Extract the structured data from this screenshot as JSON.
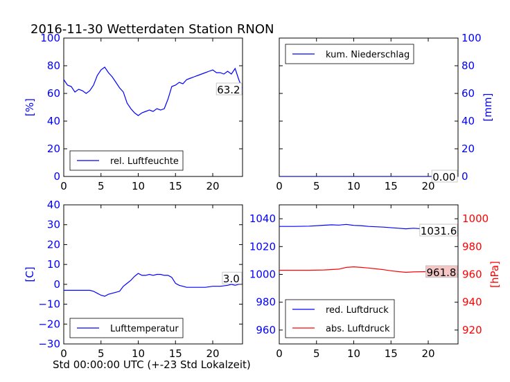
{
  "title": "2016-11-30 Wetterdaten Station RNON",
  "xlabel_bottom": "Std 00:00:00 UTC (+-23 Std Lokalzeit)",
  "colors": {
    "primary": "#0000ff",
    "secondary": "#ff0000",
    "text": "#000000"
  },
  "chart_data": [
    {
      "type": "line",
      "panel": "top-left",
      "ylabel": "[%]",
      "ylabel_side": "left",
      "xlim": [
        0,
        24
      ],
      "ylim": [
        0,
        100
      ],
      "xticks": [
        0,
        5,
        10,
        15,
        20
      ],
      "yticks": [
        0,
        20,
        40,
        60,
        80,
        100
      ],
      "legend": {
        "placement": "lower-left",
        "entries": [
          "rel. Luftfeuchte"
        ]
      },
      "last_value_label": "63.2",
      "series": [
        {
          "name": "rel. Luftfeuchte",
          "color": "#0000ff",
          "x": [
            0,
            0.5,
            1,
            1.5,
            2,
            2.5,
            3,
            3.5,
            4,
            4.5,
            5,
            5.5,
            6,
            6.5,
            7,
            7.5,
            8,
            8.5,
            9,
            9.5,
            10,
            10.5,
            11,
            11.5,
            12,
            12.5,
            13,
            13.5,
            14,
            14.5,
            15,
            15.5,
            16,
            16.5,
            17,
            17.5,
            18,
            18.5,
            19,
            19.5,
            20,
            20.5,
            21,
            21.5,
            22,
            22.5,
            23,
            23.5,
            24
          ],
          "y": [
            70,
            66,
            65,
            61,
            63,
            62,
            60,
            62,
            66,
            73,
            77,
            79,
            75,
            72,
            68,
            64,
            61,
            53,
            49,
            46,
            44,
            46,
            47,
            48,
            47,
            49,
            48,
            49,
            56,
            65,
            66,
            68,
            67,
            70,
            71,
            72,
            73,
            74,
            75,
            76,
            77,
            75,
            75,
            74,
            76,
            74,
            78,
            70,
            63
          ]
        }
      ]
    },
    {
      "type": "line",
      "panel": "top-right",
      "ylabel": "[mm]",
      "ylabel_side": "right",
      "xlim": [
        0,
        24
      ],
      "ylim": [
        0,
        100
      ],
      "xticks": [
        0,
        5,
        10,
        15,
        20
      ],
      "yticks": [
        0,
        20,
        40,
        60,
        80,
        100
      ],
      "legend": {
        "placement": "upper-left",
        "entries": [
          "kum. Niederschlag"
        ]
      },
      "last_value_label": "0.00",
      "series": [
        {
          "name": "kum. Niederschlag",
          "color": "#0000ff",
          "x": [
            0,
            24
          ],
          "y": [
            0,
            0
          ]
        }
      ]
    },
    {
      "type": "line",
      "panel": "bottom-left",
      "ylabel": "[C]",
      "ylabel_side": "left",
      "xlim": [
        0,
        24
      ],
      "ylim": [
        -30,
        40
      ],
      "xticks": [
        0,
        5,
        10,
        15,
        20
      ],
      "yticks": [
        -30,
        -20,
        -10,
        0,
        10,
        20,
        30,
        40
      ],
      "legend": {
        "placement": "lower-left",
        "entries": [
          "Lufttemperatur"
        ]
      },
      "last_value_label": "3.0",
      "series": [
        {
          "name": "Lufttemperatur",
          "color": "#0000ff",
          "x": [
            0,
            1,
            2,
            3,
            3.5,
            4,
            4.5,
            5,
            5.5,
            6,
            6.5,
            7,
            7.5,
            8,
            8.5,
            9,
            9.5,
            10,
            10.5,
            11,
            11.5,
            12,
            12.5,
            13,
            13.5,
            14,
            14.5,
            15,
            15.5,
            16,
            16.5,
            17,
            18,
            19,
            20,
            21,
            22,
            22.5,
            23,
            23.5,
            24
          ],
          "y": [
            -3,
            -3,
            -3,
            -3,
            -3,
            -3.5,
            -4.5,
            -5.5,
            -6,
            -5,
            -4.5,
            -4,
            -3.5,
            -1,
            0.5,
            2,
            4,
            5.5,
            4.5,
            4.5,
            5,
            4.5,
            5,
            5,
            4.5,
            4.5,
            3.5,
            0.5,
            -0.5,
            -1,
            -1.5,
            -1.5,
            -1.5,
            -1.5,
            -1,
            -1,
            -0.5,
            0,
            -0.5,
            0,
            3
          ]
        }
      ]
    },
    {
      "type": "line",
      "panel": "bottom-right",
      "ylabel": "[hPa]",
      "ylabel_side": "right",
      "xlim": [
        0,
        24
      ],
      "ylim": [
        950,
        1050
      ],
      "ylim_right": [
        910,
        1010
      ],
      "xticks": [
        0,
        5,
        10,
        15,
        20
      ],
      "yticks": [
        960,
        980,
        1000,
        1020,
        1040
      ],
      "yticks_right": [
        920,
        940,
        960,
        980,
        1000
      ],
      "legend": {
        "placement": "lower-left",
        "entries": [
          "red. Luftdruck",
          "abs. Luftdruck"
        ]
      },
      "last_value_labels": [
        "1031.6",
        "961.8"
      ],
      "series": [
        {
          "name": "red. Luftdruck",
          "color": "#0000ff",
          "axis": "left",
          "x": [
            0,
            2,
            4,
            6,
            7,
            8,
            9,
            10,
            11,
            12,
            14,
            16,
            17,
            18,
            20,
            22,
            24
          ],
          "y": [
            1034.5,
            1034.5,
            1034.7,
            1035.3,
            1035.6,
            1035.4,
            1035.9,
            1035.2,
            1035.0,
            1034.5,
            1034.0,
            1033.2,
            1032.8,
            1033.2,
            1032.5,
            1032.0,
            1031.6
          ]
        },
        {
          "name": "abs. Luftdruck",
          "color": "#ff0000",
          "axis": "right",
          "x": [
            0,
            2,
            4,
            6,
            8,
            9,
            10,
            11,
            12,
            13,
            14,
            15,
            16,
            17,
            18,
            20,
            22,
            24
          ],
          "y": [
            963.0,
            963.0,
            963.0,
            963.2,
            963.8,
            965.0,
            965.4,
            965.0,
            964.6,
            964.0,
            963.4,
            962.6,
            962.0,
            961.5,
            961.8,
            962.0,
            962.0,
            961.8
          ]
        }
      ]
    }
  ]
}
